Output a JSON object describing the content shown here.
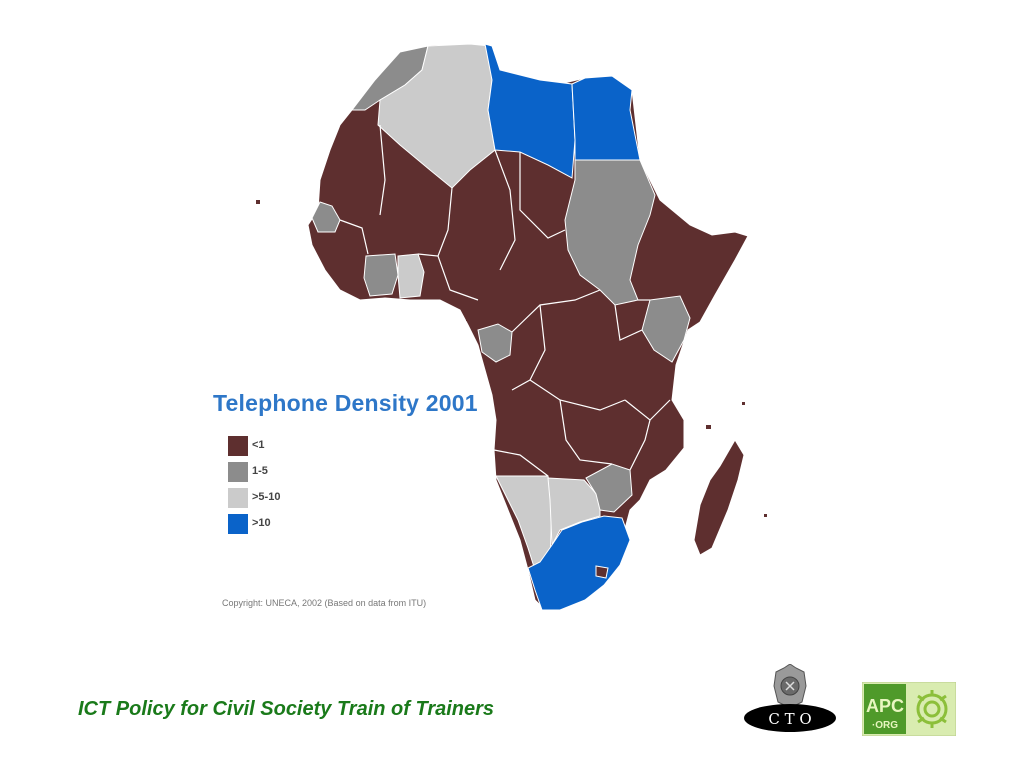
{
  "map": {
    "title": "Telephone Density 2001",
    "copyright": "Copyright: UNECA, 2002 (Based on data from ITU)",
    "colors": {
      "lt1": "#5e2f2f",
      "1to5": "#8c8c8c",
      "5to10": "#cbcbcb",
      "gt10": "#0a63c9",
      "title": "#2e77c8",
      "border": "#ffffff"
    },
    "legend": [
      {
        "label": "<1",
        "color": "#5e2f2f"
      },
      {
        "label": "1-5",
        "color": "#8c8c8c"
      },
      {
        "label": ">5-10",
        "color": "#cbcbcb"
      },
      {
        "label": ">10",
        "color": "#0a63c9"
      }
    ]
  },
  "footer": {
    "title": "ICT Policy for Civil Society Train of Trainers",
    "title_color": "#1a7a1a"
  },
  "logos": {
    "cto": {
      "text": "C T O"
    },
    "apc": {
      "text": "APC",
      "subtext": "·ORG"
    }
  }
}
